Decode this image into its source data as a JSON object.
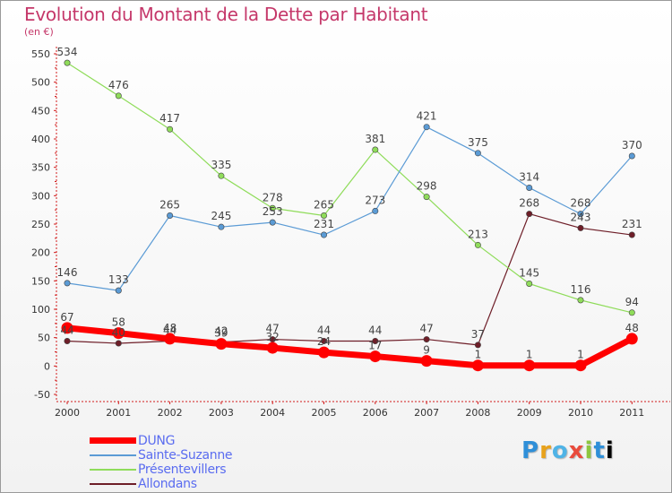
{
  "chart_data": {
    "type": "line",
    "title": "Evolution du Montant de la Dette par Habitant",
    "subtitle": "(en €)",
    "x": [
      "2000",
      "2001",
      "2002",
      "2003",
      "2004",
      "2005",
      "2006",
      "2007",
      "2008",
      "2009",
      "2010",
      "2011"
    ],
    "yticks": [
      -50,
      0,
      50,
      100,
      150,
      200,
      250,
      300,
      350,
      400,
      450,
      500,
      550
    ],
    "ylim": [
      -50,
      550
    ],
    "grid": false,
    "legend_position": "bottom-left",
    "series": [
      {
        "name": "Allondans",
        "color": "#6e1e28",
        "width": 1.2,
        "marker": 3.2,
        "values": [
          44,
          40,
          44,
          42,
          47,
          44,
          44,
          47,
          37,
          268,
          243,
          231
        ],
        "labels": [
          "44",
          "40",
          "44",
          "42",
          "47",
          "44",
          "44",
          "47",
          "37",
          "268",
          "243",
          "231"
        ]
      },
      {
        "name": "Présentevillers",
        "color": "#8fdc5a",
        "width": 1.2,
        "marker": 3.2,
        "values": [
          534,
          476,
          417,
          335,
          278,
          265,
          381,
          298,
          213,
          145,
          116,
          94
        ],
        "labels": [
          "534",
          "476",
          "417",
          "335",
          "278",
          "265",
          "381",
          "298",
          "213",
          "145",
          "116",
          "94"
        ]
      },
      {
        "name": "Sainte-Suzanne",
        "color": "#5b9bd5",
        "width": 1.2,
        "marker": 3.2,
        "values": [
          146,
          133,
          265,
          245,
          253,
          231,
          273,
          421,
          375,
          314,
          268,
          370
        ],
        "labels": [
          "146",
          "133",
          "265",
          "245",
          "253",
          "231",
          "273",
          "421",
          "375",
          "314",
          "268",
          "370"
        ]
      },
      {
        "name": "DUNG",
        "color": "#ff0000",
        "width": 7,
        "marker": 6.5,
        "values": [
          67,
          58,
          48,
          39,
          32,
          24,
          17,
          9,
          1,
          1,
          1,
          48
        ],
        "labels": [
          "67",
          "58",
          "48",
          "39",
          "32",
          "24",
          "17",
          "9",
          "1",
          "1",
          "1",
          "48"
        ]
      }
    ],
    "legend": [
      "DUNG",
      "Sainte-Suzanne",
      "Présentevillers",
      "Allondans"
    ]
  },
  "logo": [
    "P",
    "r",
    "o",
    "x",
    "i",
    "t",
    "i"
  ]
}
